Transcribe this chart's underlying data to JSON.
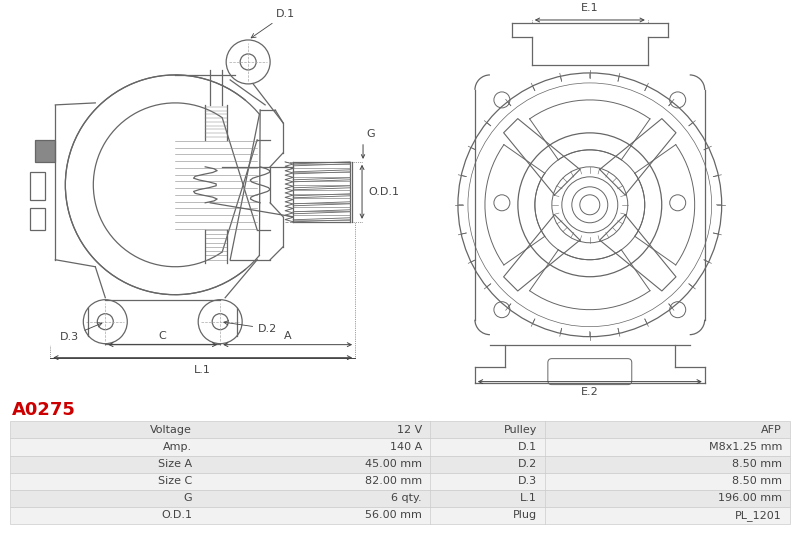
{
  "title_code": "A0275",
  "title_color": "#cc0000",
  "bg_color": "#ffffff",
  "table_rows": [
    [
      "Voltage",
      "12 V",
      "Pulley",
      "AFP"
    ],
    [
      "Amp.",
      "140 A",
      "D.1",
      "M8x1.25 mm"
    ],
    [
      "Size A",
      "45.00 mm",
      "D.2",
      "8.50 mm"
    ],
    [
      "Size C",
      "82.00 mm",
      "D.3",
      "8.50 mm"
    ],
    [
      "G",
      "6 qty.",
      "L.1",
      "196.00 mm"
    ],
    [
      "O.D.1",
      "56.00 mm",
      "Plug",
      "PL_1201"
    ]
  ],
  "table_bg_odd": "#e8e8e8",
  "table_bg_even": "#f2f2f2",
  "table_border": "#cccccc",
  "table_text_color": "#444444",
  "font_size_table": 8.0
}
